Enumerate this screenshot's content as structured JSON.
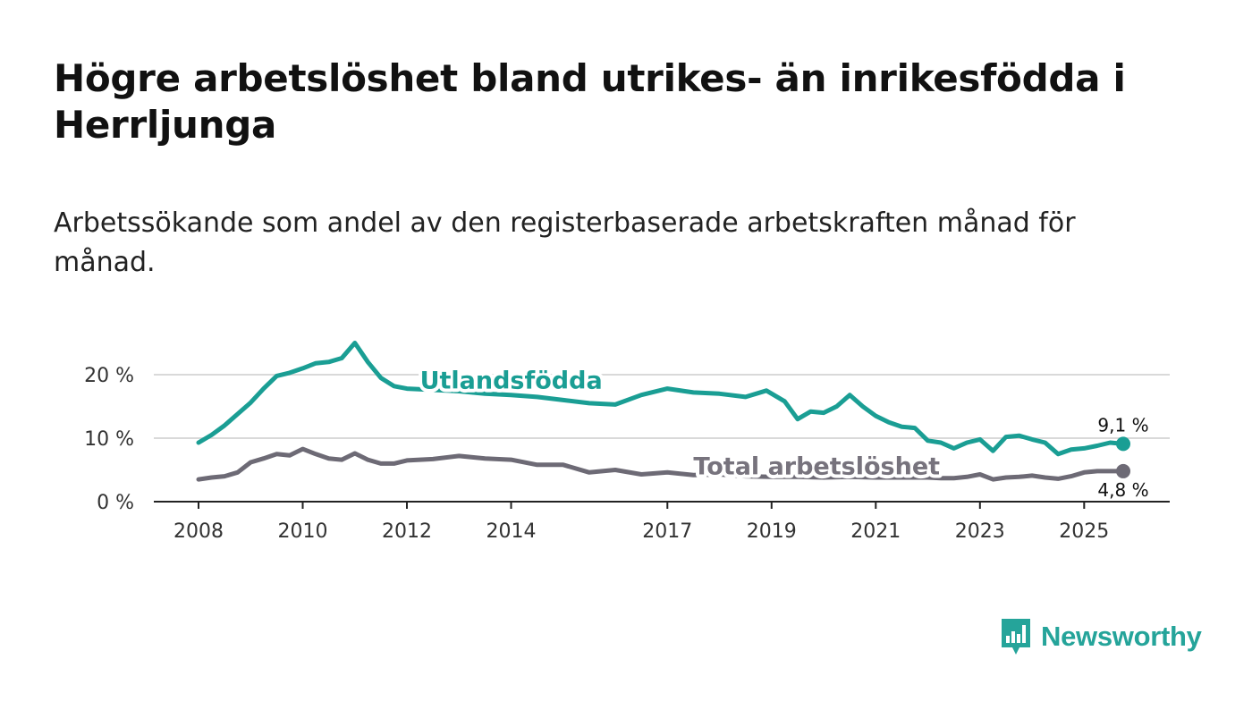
{
  "title": "Högre arbetslöshet bland utrikes- än inrikesfödda i Herrljunga",
  "subtitle": "Arbetssökande som andel av den registerbaserade arbetskraften månad för månad.",
  "brand": {
    "name": "Newsworthy",
    "color": "#25a49a",
    "icon": "bar-chart-speech-icon"
  },
  "chart_data": {
    "type": "line",
    "title": "Högre arbetslöshet bland utrikes- än inrikesfödda i Herrljunga",
    "subtitle": "Arbetssökande som andel av den registerbaserade arbetskraften månad för månad.",
    "xlabel": "",
    "ylabel": "",
    "xlim": [
      2008.0,
      2025.75
    ],
    "ylim": [
      0,
      22
    ],
    "grid": true,
    "x_ticks": [
      {
        "value": 2008,
        "label": "2008"
      },
      {
        "value": 2010,
        "label": "2010"
      },
      {
        "value": 2012,
        "label": "2012"
      },
      {
        "value": 2014,
        "label": "2014"
      },
      {
        "value": 2017,
        "label": "2017"
      },
      {
        "value": 2019,
        "label": "2019"
      },
      {
        "value": 2021,
        "label": "2021"
      },
      {
        "value": 2023,
        "label": "2023"
      },
      {
        "value": 2025,
        "label": "2025"
      }
    ],
    "y_ticks": [
      {
        "value": 0,
        "label": "0 %"
      },
      {
        "value": 10,
        "label": "10 %"
      },
      {
        "value": 20,
        "label": "20 %"
      }
    ],
    "series": [
      {
        "name": "Utlandsfödda",
        "color": "#1a9e94",
        "end_label": "9,1 %",
        "label_at": [
          2012.25,
          17.8
        ],
        "label_color": "#1a9e94",
        "x": [
          2008.0,
          2008.25,
          2008.5,
          2008.75,
          2009.0,
          2009.25,
          2009.5,
          2009.75,
          2010.0,
          2010.25,
          2010.5,
          2010.75,
          2011.0,
          2011.25,
          2011.5,
          2011.75,
          2012.0,
          2012.5,
          2013.0,
          2013.5,
          2014.0,
          2014.5,
          2015.0,
          2015.5,
          2016.0,
          2016.5,
          2017.0,
          2017.5,
          2018.0,
          2018.5,
          2018.9,
          2019.25,
          2019.5,
          2019.75,
          2020.0,
          2020.25,
          2020.5,
          2020.75,
          2021.0,
          2021.25,
          2021.5,
          2021.75,
          2022.0,
          2022.25,
          2022.5,
          2022.75,
          2023.0,
          2023.25,
          2023.5,
          2023.75,
          2024.0,
          2024.25,
          2024.5,
          2024.75,
          2025.0,
          2025.25,
          2025.5,
          2025.75
        ],
        "values": [
          9.3,
          10.5,
          12.0,
          13.8,
          15.6,
          17.8,
          19.8,
          20.3,
          21.0,
          21.8,
          22.0,
          22.6,
          25.0,
          22.0,
          19.5,
          18.2,
          17.8,
          17.6,
          17.4,
          17.0,
          16.8,
          16.5,
          16.0,
          15.5,
          15.3,
          16.8,
          17.8,
          17.2,
          17.0,
          16.5,
          17.5,
          15.8,
          13.0,
          14.2,
          14.0,
          15.0,
          16.8,
          15.0,
          13.5,
          12.5,
          11.8,
          11.6,
          9.6,
          9.3,
          8.4,
          9.3,
          9.8,
          8.0,
          10.2,
          10.4,
          9.8,
          9.3,
          7.5,
          8.2,
          8.4,
          8.8,
          9.3,
          9.1
        ]
      },
      {
        "name": "Total arbetslöshet",
        "color": "#6d6a75",
        "end_label": "4,8 %",
        "label_at": [
          2017.5,
          4.3
        ],
        "label_color": "#77737d",
        "x": [
          2008.0,
          2008.25,
          2008.5,
          2008.75,
          2009.0,
          2009.25,
          2009.5,
          2009.75,
          2010.0,
          2010.25,
          2010.5,
          2010.75,
          2011.0,
          2011.25,
          2011.5,
          2011.75,
          2012.0,
          2012.5,
          2013.0,
          2013.5,
          2014.0,
          2014.5,
          2015.0,
          2015.5,
          2016.0,
          2016.5,
          2017.0,
          2017.5,
          2018.0,
          2018.5,
          2019.0,
          2019.5,
          2020.0,
          2020.5,
          2021.0,
          2021.5,
          2022.0,
          2022.25,
          2022.5,
          2022.75,
          2023.0,
          2023.25,
          2023.5,
          2023.75,
          2024.0,
          2024.25,
          2024.5,
          2024.75,
          2025.0,
          2025.25,
          2025.5,
          2025.75
        ],
        "values": [
          3.5,
          3.8,
          4.0,
          4.6,
          6.2,
          6.8,
          7.5,
          7.3,
          8.3,
          7.5,
          6.8,
          6.6,
          7.6,
          6.6,
          6.0,
          6.0,
          6.5,
          6.7,
          7.2,
          6.8,
          6.6,
          5.8,
          5.8,
          4.6,
          5.0,
          4.3,
          4.6,
          4.2,
          4.3,
          4.0,
          3.9,
          3.9,
          3.8,
          3.9,
          3.8,
          3.8,
          3.8,
          3.7,
          3.7,
          3.9,
          4.3,
          3.5,
          3.8,
          3.9,
          4.1,
          3.8,
          3.6,
          4.0,
          4.6,
          4.8,
          4.8,
          4.8
        ]
      }
    ]
  }
}
